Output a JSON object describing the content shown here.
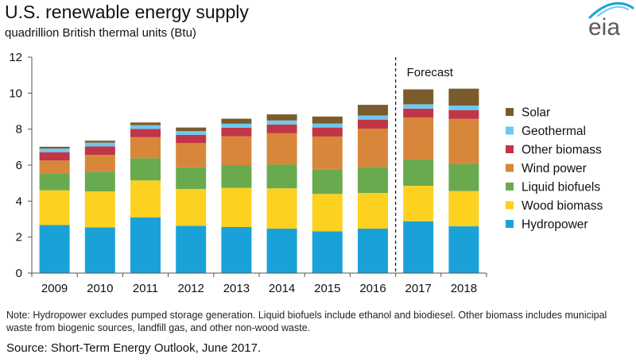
{
  "header": {
    "title": "U.S. renewable energy supply",
    "subtitle": "quadrillion British thermal units (Btu)",
    "logo_text": "eia"
  },
  "footer": {
    "note": "Note: Hydropower excludes pumped storage generation.  Liquid biofuels include ethanol and biodiesel.  Other biomass includes municipal waste from biogenic sources, landfill gas, and other non-wood waste.",
    "source": "Source: Short-Term Energy Outlook, June 2017."
  },
  "chart_data": {
    "type": "bar",
    "stacked": true,
    "title": "U.S. renewable energy supply",
    "ylabel": "quadrillion British thermal units (Btu)",
    "xlabel": "",
    "ylim": [
      0,
      12
    ],
    "yticks": [
      0,
      2,
      4,
      6,
      8,
      10,
      12
    ],
    "grid": false,
    "legend_position": "right",
    "annotations": [
      {
        "text": "Forecast",
        "after_category": "2016",
        "style": "dashed-divider"
      }
    ],
    "categories": [
      "2009",
      "2010",
      "2011",
      "2012",
      "2013",
      "2014",
      "2015",
      "2016",
      "2017",
      "2018"
    ],
    "series": [
      {
        "name": "Hydropower",
        "color": "#1aa2d8",
        "values": [
          2.67,
          2.54,
          3.1,
          2.63,
          2.56,
          2.47,
          2.32,
          2.47,
          2.88,
          2.6
        ]
      },
      {
        "name": "Wood biomass",
        "color": "#fdd11f",
        "values": [
          1.93,
          2.0,
          2.05,
          2.04,
          2.18,
          2.24,
          2.08,
          1.98,
          1.97,
          1.96
        ]
      },
      {
        "name": "Liquid biofuels",
        "color": "#6aaa4f",
        "values": [
          0.94,
          1.1,
          1.23,
          1.21,
          1.26,
          1.33,
          1.37,
          1.45,
          1.46,
          1.51
        ]
      },
      {
        "name": "Wind power",
        "color": "#d8873a",
        "values": [
          0.72,
          0.93,
          1.17,
          1.34,
          1.6,
          1.73,
          1.82,
          2.13,
          2.34,
          2.5
        ]
      },
      {
        "name": "Other biomass",
        "color": "#c03646",
        "values": [
          0.46,
          0.47,
          0.46,
          0.46,
          0.48,
          0.49,
          0.5,
          0.5,
          0.49,
          0.49
        ]
      },
      {
        "name": "Geothermal",
        "color": "#6ec9ef",
        "values": [
          0.2,
          0.21,
          0.21,
          0.21,
          0.22,
          0.22,
          0.22,
          0.23,
          0.24,
          0.25
        ]
      },
      {
        "name": "Solar",
        "color": "#7a5c2c",
        "values": [
          0.1,
          0.11,
          0.15,
          0.2,
          0.28,
          0.34,
          0.39,
          0.59,
          0.83,
          0.94
        ]
      }
    ]
  }
}
